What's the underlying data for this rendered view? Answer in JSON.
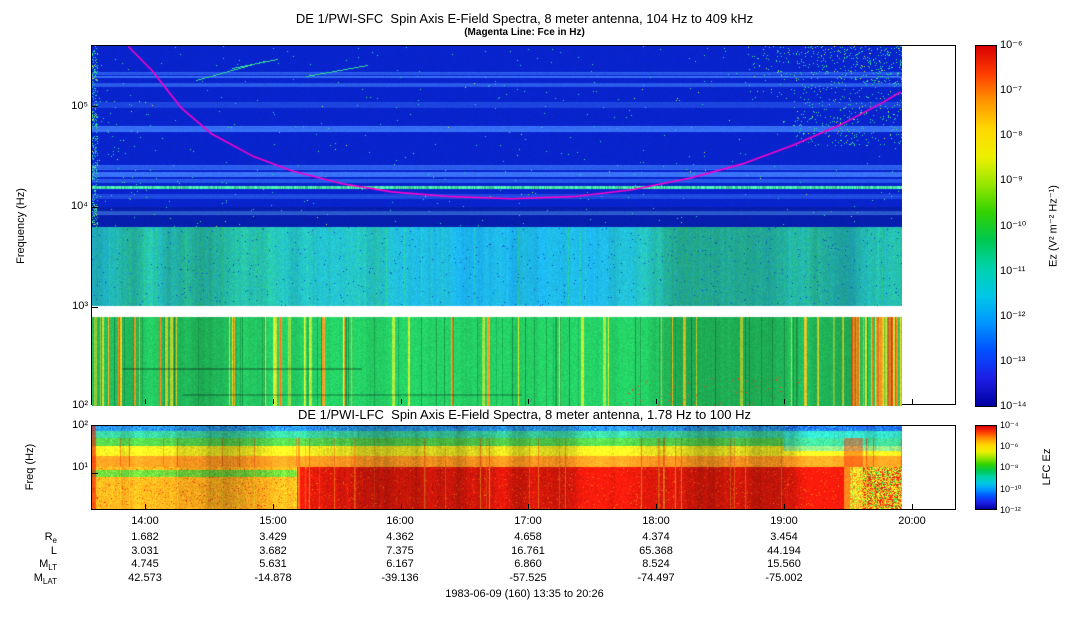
{
  "chart_data": [
    {
      "type": "heatmap",
      "instrument": "DE 1/PWI-SFC",
      "title": "DE 1/PWI-SFC  Spin Axis E-Field Spectra, 8 meter antenna, 104 Hz to 409 kHz",
      "subtitle": "(Magenta Line: Fce in Hz)",
      "ylabel": "Frequency (Hz)",
      "y_scale": "log",
      "y_range_hz": [
        104,
        409000
      ],
      "y_tick_labels": [
        "10⁵",
        "10⁴",
        "10³",
        "10²"
      ],
      "x_ticks": [
        "14:00",
        "15:00",
        "16:00",
        "17:00",
        "18:00",
        "19:00",
        "20:00"
      ],
      "time_range": "13:35 to 20:26",
      "z_label": "Ez (V² m⁻² Hz⁻¹)",
      "z_range": [
        1e-14,
        1e-06
      ],
      "colorbar_ticks": [
        "10⁻⁶",
        "10⁻⁷",
        "10⁻⁸",
        "10⁻⁹",
        "10⁻¹⁰",
        "10⁻¹¹",
        "10⁻¹²",
        "10⁻¹³",
        "10⁻¹⁴"
      ],
      "colorbar_stops": [
        "#d80000",
        "#ff3c00",
        "#ff9600",
        "#ffd800",
        "#eef000",
        "#96e600",
        "#32d200",
        "#00c850",
        "#00d2aa",
        "#00c8e6",
        "#0096ff",
        "#0050ff",
        "#1e1ee6",
        "#0000a0"
      ],
      "bands": [
        {
          "f_min": 6500,
          "f_max": 409000,
          "color": "#0824cd",
          "desc": "dark blue background with lighter horizontal striping and scattered cyan/green bursts, strong burst patch at upper right"
        },
        {
          "f_min": 1050,
          "f_max": 6500,
          "color": "#1aa8e2",
          "desc": "cyan band with green vertical emission streaks"
        },
        {
          "f_min": 820,
          "f_max": 1050,
          "color": "#ffffff",
          "desc": "white data gap near 1 kHz"
        },
        {
          "f_min": 104,
          "f_max": 820,
          "color": "#22c25e",
          "desc": "green band with yellow/orange/red vertical bursts, intense near 19:40 and at start"
        }
      ],
      "emission_line_hz": 16000,
      "overlay_line": {
        "name": "Fce",
        "color": "#ff00cc",
        "points_t_hz": [
          [
            13.87,
            405000
          ],
          [
            13.89,
            382000
          ],
          [
            14.06,
            230000
          ],
          [
            14.29,
            98000
          ],
          [
            14.53,
            54000
          ],
          [
            14.85,
            32700
          ],
          [
            15.16,
            23200
          ],
          [
            15.56,
            17200
          ],
          [
            15.95,
            14300
          ],
          [
            16.43,
            12800
          ],
          [
            16.9,
            12200
          ],
          [
            17.38,
            12800
          ],
          [
            17.85,
            15000
          ],
          [
            18.32,
            19800
          ],
          [
            18.72,
            27200
          ],
          [
            19.11,
            41200
          ],
          [
            19.51,
            68200
          ],
          [
            19.82,
            110000
          ],
          [
            19.97,
            142000
          ]
        ]
      }
    },
    {
      "type": "heatmap",
      "instrument": "DE 1/PWI-LFC",
      "title": "DE 1/PWI-LFC  Spin Axis E-Field Spectra, 8 meter antenna, 1.78 Hz to 100 Hz",
      "ylabel": "Freq (Hz)",
      "y_scale": "log",
      "y_range_hz": [
        1.78,
        100
      ],
      "y_tick_labels": [
        "10²",
        "10¹"
      ],
      "z_label": "LFC Ez",
      "z_range": [
        1e-12,
        0.0001
      ],
      "colorbar_ticks": [
        "10⁻⁴",
        "10⁻⁶",
        "10⁻⁸",
        "10⁻¹⁰",
        "10⁻¹²"
      ],
      "bands": [
        {
          "f_min": 79,
          "f_max": 100,
          "color": "#2878e0",
          "desc": "blue/cyan speckled top edge"
        },
        {
          "f_min": 56,
          "f_max": 79,
          "color": "#38c890",
          "desc": "green-cyan row"
        },
        {
          "f_min": 39,
          "f_max": 56,
          "color": "#50c848",
          "desc": "green row"
        },
        {
          "f_min": 24,
          "f_max": 39,
          "color": "#e8e020",
          "desc": "yellow row"
        },
        {
          "f_min": 14,
          "f_max": 24,
          "color": "#ff9820",
          "desc": "orange row"
        },
        {
          "f_min": 1.78,
          "f_max": 14,
          "color": "#f01808",
          "desc": "orange at left turning to intense red mass from ~15:40 to ~19:30, bright streaks near 19:40"
        }
      ]
    }
  ],
  "ephemeris": {
    "rows": [
      {
        "base": "R",
        "sub": "e",
        "values": [
          "1.682",
          "3.429",
          "4.362",
          "4.658",
          "4.374",
          "3.454"
        ]
      },
      {
        "base": "L",
        "sub": "",
        "values": [
          "3.031",
          "3.682",
          "7.375",
          "16.761",
          "65.368",
          "44.194"
        ]
      },
      {
        "base": "M",
        "sub": "LT",
        "values": [
          "4.745",
          "5.631",
          "6.167",
          "6.860",
          "8.524",
          "15.560"
        ]
      },
      {
        "base": "M",
        "sub": "LAT",
        "values": [
          "42.573",
          "-14.878",
          "-39.136",
          "-57.525",
          "-74.497",
          "-75.002"
        ]
      }
    ]
  },
  "footer": "1983-06-09 (160) 13:35 to 20:26"
}
